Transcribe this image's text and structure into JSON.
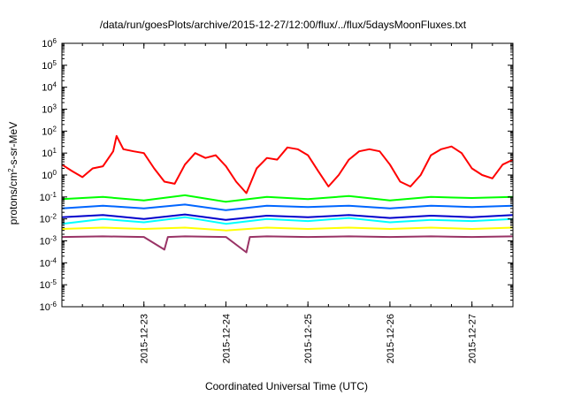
{
  "chart_data": {
    "type": "line",
    "title": "/data/run/goesPlots/archive/2015-12-27/12:00/flux/../flux/5daysMoonFluxes.txt",
    "xlabel": "Coordinated Universal Time (UTC)",
    "ylabel": {
      "base": "protons/cm",
      "sup": "2",
      "rest": "-s-sr-MeV"
    },
    "yscale": "log",
    "ylim": [
      1e-06,
      1000000.0
    ],
    "xlim": [
      "2015-12-22 00:00",
      "2015-12-27 12:00"
    ],
    "grid": false,
    "legend": "none",
    "y_ticks": [
      {
        "value": 1e-06,
        "base": "10",
        "exp": "-6"
      },
      {
        "value": 1e-05,
        "base": "10",
        "exp": "-5"
      },
      {
        "value": 0.0001,
        "base": "10",
        "exp": "-4"
      },
      {
        "value": 0.001,
        "base": "10",
        "exp": "-3"
      },
      {
        "value": 0.01,
        "base": "10",
        "exp": "-2"
      },
      {
        "value": 0.1,
        "base": "10",
        "exp": "-1"
      },
      {
        "value": 1.0,
        "base": "10",
        "exp": "0"
      },
      {
        "value": 10.0,
        "base": "10",
        "exp": "1"
      },
      {
        "value": 100.0,
        "base": "10",
        "exp": "2"
      },
      {
        "value": 1000.0,
        "base": "10",
        "exp": "3"
      },
      {
        "value": 10000.0,
        "base": "10",
        "exp": "4"
      },
      {
        "value": 100000.0,
        "base": "10",
        "exp": "5"
      },
      {
        "value": 1000000.0,
        "base": "10",
        "exp": "6"
      }
    ],
    "x_ticks": [
      "2015-12-23",
      "2015-12-24",
      "2015-12-25",
      "2015-12-26",
      "2015-12-27"
    ],
    "series": [
      {
        "color": "#ff0000",
        "x": [
          "2015-12-22 00:00",
          "2015-12-22 03:00",
          "2015-12-22 06:00",
          "2015-12-22 09:00",
          "2015-12-22 12:00",
          "2015-12-22 15:00",
          "2015-12-22 16:00",
          "2015-12-22 18:00",
          "2015-12-22 21:00",
          "2015-12-23 00:00",
          "2015-12-23 03:00",
          "2015-12-23 06:00",
          "2015-12-23 09:00",
          "2015-12-23 12:00",
          "2015-12-23 15:00",
          "2015-12-23 18:00",
          "2015-12-23 21:00",
          "2015-12-24 00:00",
          "2015-12-24 03:00",
          "2015-12-24 06:00",
          "2015-12-24 09:00",
          "2015-12-24 12:00",
          "2015-12-24 15:00",
          "2015-12-24 18:00",
          "2015-12-24 21:00",
          "2015-12-25 00:00",
          "2015-12-25 03:00",
          "2015-12-25 06:00",
          "2015-12-25 09:00",
          "2015-12-25 12:00",
          "2015-12-25 15:00",
          "2015-12-25 18:00",
          "2015-12-25 21:00",
          "2015-12-26 00:00",
          "2015-12-26 03:00",
          "2015-12-26 06:00",
          "2015-12-26 09:00",
          "2015-12-26 12:00",
          "2015-12-26 15:00",
          "2015-12-26 18:00",
          "2015-12-26 21:00",
          "2015-12-27 00:00",
          "2015-12-27 03:00",
          "2015-12-27 06:00",
          "2015-12-27 09:00",
          "2015-12-27 12:00"
        ],
        "values": [
          3,
          1.5,
          0.8,
          2,
          2.5,
          12,
          60,
          15,
          12,
          10,
          2,
          0.5,
          0.4,
          3,
          10,
          6,
          8,
          2.5,
          0.5,
          0.15,
          2,
          6,
          5,
          18,
          15,
          8,
          1.5,
          0.3,
          1,
          5,
          12,
          15,
          12,
          3,
          0.5,
          0.3,
          1,
          8,
          15,
          20,
          10,
          2,
          1,
          0.7,
          3,
          5
        ]
      },
      {
        "color": "#00ff00",
        "x": [
          "2015-12-22 00:00",
          "2015-12-22 12:00",
          "2015-12-23 00:00",
          "2015-12-23 12:00",
          "2015-12-24 00:00",
          "2015-12-24 12:00",
          "2015-12-25 00:00",
          "2015-12-25 12:00",
          "2015-12-26 00:00",
          "2015-12-26 12:00",
          "2015-12-27 00:00",
          "2015-12-27 12:00"
        ],
        "values": [
          0.08,
          0.1,
          0.07,
          0.12,
          0.06,
          0.1,
          0.08,
          0.11,
          0.07,
          0.1,
          0.09,
          0.1
        ]
      },
      {
        "color": "#00ffff",
        "x": [
          "2015-12-22 00:00",
          "2015-12-22 12:00",
          "2015-12-23 00:00",
          "2015-12-23 12:00",
          "2015-12-24 00:00",
          "2015-12-24 12:00",
          "2015-12-25 00:00",
          "2015-12-25 12:00",
          "2015-12-26 00:00",
          "2015-12-26 12:00",
          "2015-12-27 00:00",
          "2015-12-27 12:00"
        ],
        "values": [
          0.006,
          0.01,
          0.007,
          0.012,
          0.006,
          0.01,
          0.008,
          0.011,
          0.007,
          0.009,
          0.008,
          0.01
        ]
      },
      {
        "color": "#0066ff",
        "x": [
          "2015-12-22 00:00",
          "2015-12-22 12:00",
          "2015-12-23 00:00",
          "2015-12-23 12:00",
          "2015-12-24 00:00",
          "2015-12-24 12:00",
          "2015-12-25 00:00",
          "2015-12-25 12:00",
          "2015-12-26 00:00",
          "2015-12-26 12:00",
          "2015-12-27 00:00",
          "2015-12-27 12:00"
        ],
        "values": [
          0.03,
          0.04,
          0.03,
          0.045,
          0.025,
          0.04,
          0.035,
          0.04,
          0.03,
          0.04,
          0.035,
          0.04
        ]
      },
      {
        "color": "#0000cc",
        "x": [
          "2015-12-22 00:00",
          "2015-12-22 12:00",
          "2015-12-23 00:00",
          "2015-12-23 12:00",
          "2015-12-24 00:00",
          "2015-12-24 12:00",
          "2015-12-25 00:00",
          "2015-12-25 12:00",
          "2015-12-26 00:00",
          "2015-12-26 12:00",
          "2015-12-27 00:00",
          "2015-12-27 12:00"
        ],
        "values": [
          0.012,
          0.015,
          0.01,
          0.016,
          0.009,
          0.014,
          0.012,
          0.015,
          0.011,
          0.014,
          0.012,
          0.015
        ]
      },
      {
        "color": "#ffff00",
        "x": [
          "2015-12-22 00:00",
          "2015-12-22 12:00",
          "2015-12-23 00:00",
          "2015-12-23 12:00",
          "2015-12-24 00:00",
          "2015-12-24 12:00",
          "2015-12-25 00:00",
          "2015-12-25 12:00",
          "2015-12-26 00:00",
          "2015-12-26 12:00",
          "2015-12-27 00:00",
          "2015-12-27 12:00"
        ],
        "values": [
          0.0035,
          0.004,
          0.0035,
          0.004,
          0.003,
          0.004,
          0.0035,
          0.004,
          0.0035,
          0.004,
          0.0035,
          0.004
        ]
      },
      {
        "color": "#993366",
        "x": [
          "2015-12-22 00:00",
          "2015-12-22 12:00",
          "2015-12-23 00:00",
          "2015-12-23 06:00",
          "2015-12-23 07:00",
          "2015-12-23 12:00",
          "2015-12-24 00:00",
          "2015-12-24 06:00",
          "2015-12-24 07:00",
          "2015-12-24 12:00",
          "2015-12-25 00:00",
          "2015-12-25 12:00",
          "2015-12-26 00:00",
          "2015-12-26 12:00",
          "2015-12-27 00:00",
          "2015-12-27 12:00"
        ],
        "values": [
          0.0015,
          0.0016,
          0.0015,
          0.0004,
          0.0015,
          0.0016,
          0.0015,
          0.0003,
          0.0015,
          0.0016,
          0.0015,
          0.0016,
          0.0015,
          0.0016,
          0.0015,
          0.0016
        ]
      }
    ]
  }
}
